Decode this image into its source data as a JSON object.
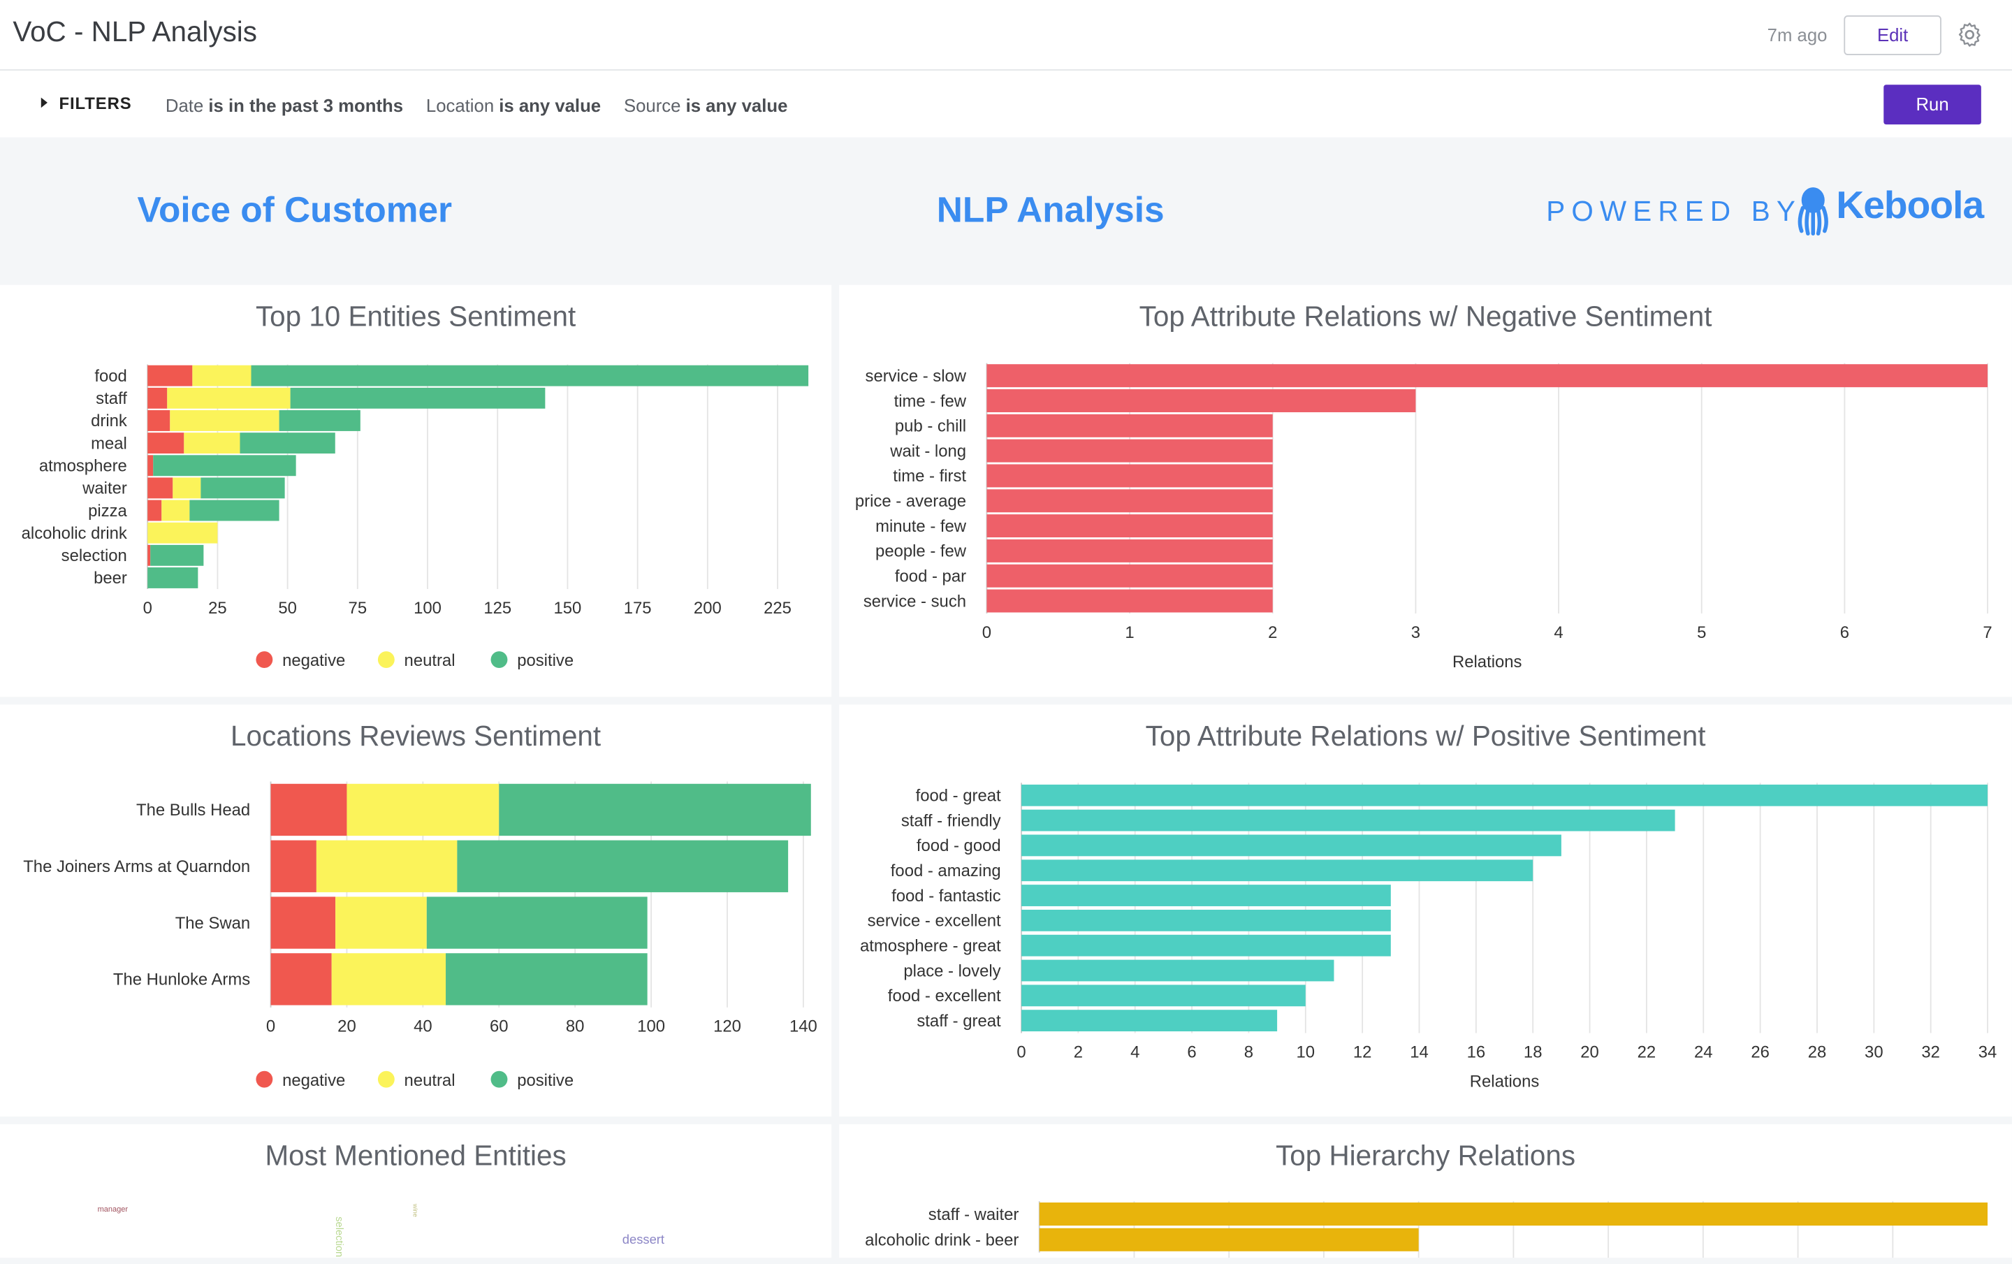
{
  "header": {
    "title": "VoC - NLP Analysis",
    "updated": "7m ago",
    "edit_label": "Edit"
  },
  "filterbar": {
    "toggle_label": "FILTERS",
    "filters": [
      {
        "field": "Date",
        "value": "is in the past 3 months"
      },
      {
        "field": "Location",
        "value": "is any value"
      },
      {
        "field": "Source",
        "value": "is any value"
      }
    ],
    "run_label": "Run"
  },
  "banner": {
    "left": "Voice of Customer",
    "center": "NLP Analysis",
    "powered": "POWERED BY",
    "brand": "Keboola"
  },
  "colors": {
    "negative": "#f0584f",
    "neutral": "#fbf35a",
    "positive": "#50bc88",
    "neg_bar": "#ee6069",
    "pos_bar": "#4ecfc2",
    "hier_bar": "#e8b40c",
    "accent": "#5b2ec0",
    "brand": "#3a8cf0"
  },
  "panels": {
    "entities": {
      "title": "Top 10 Entities Sentiment"
    },
    "neg_rel": {
      "title": "Top Attribute Relations w/ Negative Sentiment"
    },
    "locations": {
      "title": "Locations Reviews Sentiment"
    },
    "pos_rel": {
      "title": "Top Attribute Relations w/ Positive Sentiment"
    },
    "mentioned": {
      "title": "Most Mentioned Entities"
    },
    "hierarchy": {
      "title": "Top Hierarchy Relations"
    }
  },
  "chart_data": [
    {
      "id": "entities",
      "type": "bar",
      "orientation": "horizontal",
      "stacked": true,
      "categories": [
        "food",
        "staff",
        "drink",
        "meal",
        "atmosphere",
        "waiter",
        "pizza",
        "alcoholic drink",
        "selection",
        "beer"
      ],
      "series": [
        {
          "name": "negative",
          "values": [
            16,
            7,
            8,
            13,
            2,
            9,
            5,
            0,
            1,
            0
          ]
        },
        {
          "name": "neutral",
          "values": [
            21,
            44,
            39,
            20,
            0,
            10,
            10,
            25,
            0,
            0
          ]
        },
        {
          "name": "positive",
          "values": [
            199,
            91,
            29,
            34,
            51,
            30,
            32,
            0,
            19,
            18
          ]
        }
      ],
      "xlim": [
        0,
        236
      ],
      "xticks": [
        0,
        25,
        50,
        75,
        100,
        125,
        150,
        175,
        200,
        225
      ],
      "legend": "bottom"
    },
    {
      "id": "neg_rel",
      "type": "bar",
      "orientation": "horizontal",
      "categories": [
        "service - slow",
        "time - few",
        "pub - chill",
        "wait - long",
        "time - first",
        "price - average",
        "minute - few",
        "people - few",
        "food - par",
        "service - such"
      ],
      "values": [
        7,
        3,
        2,
        2,
        2,
        2,
        2,
        2,
        2,
        2
      ],
      "xlim": [
        0,
        7
      ],
      "xticks": [
        0,
        1,
        2,
        3,
        4,
        5,
        6,
        7
      ],
      "xlabel": "Relations"
    },
    {
      "id": "locations",
      "type": "bar",
      "orientation": "horizontal",
      "stacked": true,
      "categories": [
        "The Bulls Head",
        "The Joiners Arms at Quarndon",
        "The Swan",
        "The Hunloke Arms"
      ],
      "series": [
        {
          "name": "negative",
          "values": [
            20,
            12,
            17,
            16
          ]
        },
        {
          "name": "neutral",
          "values": [
            40,
            37,
            24,
            30
          ]
        },
        {
          "name": "positive",
          "values": [
            82,
            87,
            58,
            53
          ]
        }
      ],
      "xlim": [
        0,
        142
      ],
      "xticks": [
        0,
        20,
        40,
        60,
        80,
        100,
        120,
        140
      ],
      "legend": "bottom"
    },
    {
      "id": "pos_rel",
      "type": "bar",
      "orientation": "horizontal",
      "categories": [
        "food - great",
        "staff - friendly",
        "food - good",
        "food - amazing",
        "food - fantastic",
        "service - excellent",
        "atmosphere - great",
        "place - lovely",
        "food - excellent",
        "staff - great"
      ],
      "values": [
        34,
        23,
        19,
        18,
        13,
        13,
        13,
        11,
        10,
        9
      ],
      "xlim": [
        0,
        34
      ],
      "xticks": [
        0,
        2,
        4,
        6,
        8,
        10,
        12,
        14,
        16,
        18,
        20,
        22,
        24,
        26,
        28,
        30,
        32,
        34
      ],
      "xlabel": "Relations"
    },
    {
      "id": "hierarchy",
      "type": "bar",
      "orientation": "horizontal",
      "categories": [
        "staff - waiter",
        "alcoholic drink - beer"
      ],
      "values": [
        10,
        4
      ],
      "xlim": [
        0,
        10
      ]
    }
  ],
  "wordcloud": [
    {
      "text": "manager",
      "color": "#a0525e"
    },
    {
      "text": "selection",
      "color": "#b8d890"
    },
    {
      "text": "wine",
      "color": "#c0c080"
    },
    {
      "text": "dessert",
      "color": "#8c86c6"
    }
  ]
}
